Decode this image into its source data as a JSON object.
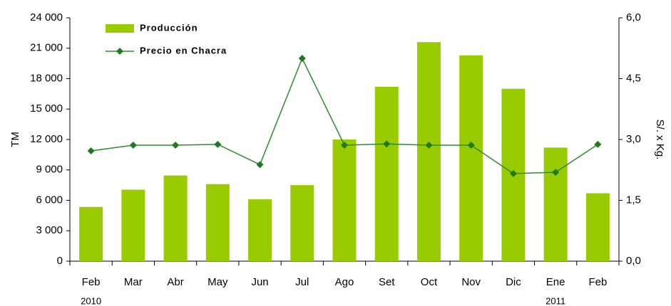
{
  "chart_data": {
    "type": "bar_line",
    "categories": [
      "Feb",
      "Mar",
      "Abr",
      "May",
      "Jun",
      "Jul",
      "Ago",
      "Set",
      "Oct",
      "Nov",
      "Dic",
      "Ene",
      "Feb"
    ],
    "x_group_labels": [
      "2010",
      null,
      null,
      null,
      null,
      null,
      null,
      null,
      null,
      null,
      null,
      "2011",
      null
    ],
    "y_label": "TM",
    "y2_label": "S/. x Kg.",
    "ylim": [
      0,
      24000
    ],
    "yticks": [
      0,
      {
        "value": 3000,
        "label": "3 000"
      },
      {
        "value": 6000,
        "label": "6 000"
      },
      {
        "value": 9000,
        "label": "9 000"
      },
      {
        "value": 12000,
        "label": "12 000"
      },
      {
        "value": 15000,
        "label": "15 000"
      },
      {
        "value": 18000,
        "label": "18 000"
      },
      {
        "value": 21000,
        "label": "21 000"
      },
      {
        "value": 24000,
        "label": "24 000"
      }
    ],
    "y2lim": [
      0,
      6
    ],
    "y2ticks": [
      {
        "value": 0,
        "label": "0,0"
      },
      {
        "value": 1.5,
        "label": "1,5"
      },
      {
        "value": 3,
        "label": "3,0"
      },
      {
        "value": 4.5,
        "label": "4,5"
      },
      {
        "value": 6,
        "label": "6,0"
      }
    ],
    "legend": "upper left",
    "series": [
      {
        "name": "Producción",
        "type": "bar",
        "color": "#99cc00",
        "values": [
          5350,
          7050,
          8450,
          7600,
          6100,
          7500,
          12000,
          17200,
          21600,
          20300,
          17000,
          11200,
          6700
        ]
      },
      {
        "name": "Precio en Chacra",
        "type": "line",
        "axis": "y2",
        "color": "#2e8b2e",
        "values": [
          2.72,
          2.86,
          2.86,
          2.88,
          2.38,
          5.0,
          2.86,
          2.89,
          2.86,
          2.86,
          2.16,
          2.19,
          2.88
        ]
      }
    ]
  }
}
